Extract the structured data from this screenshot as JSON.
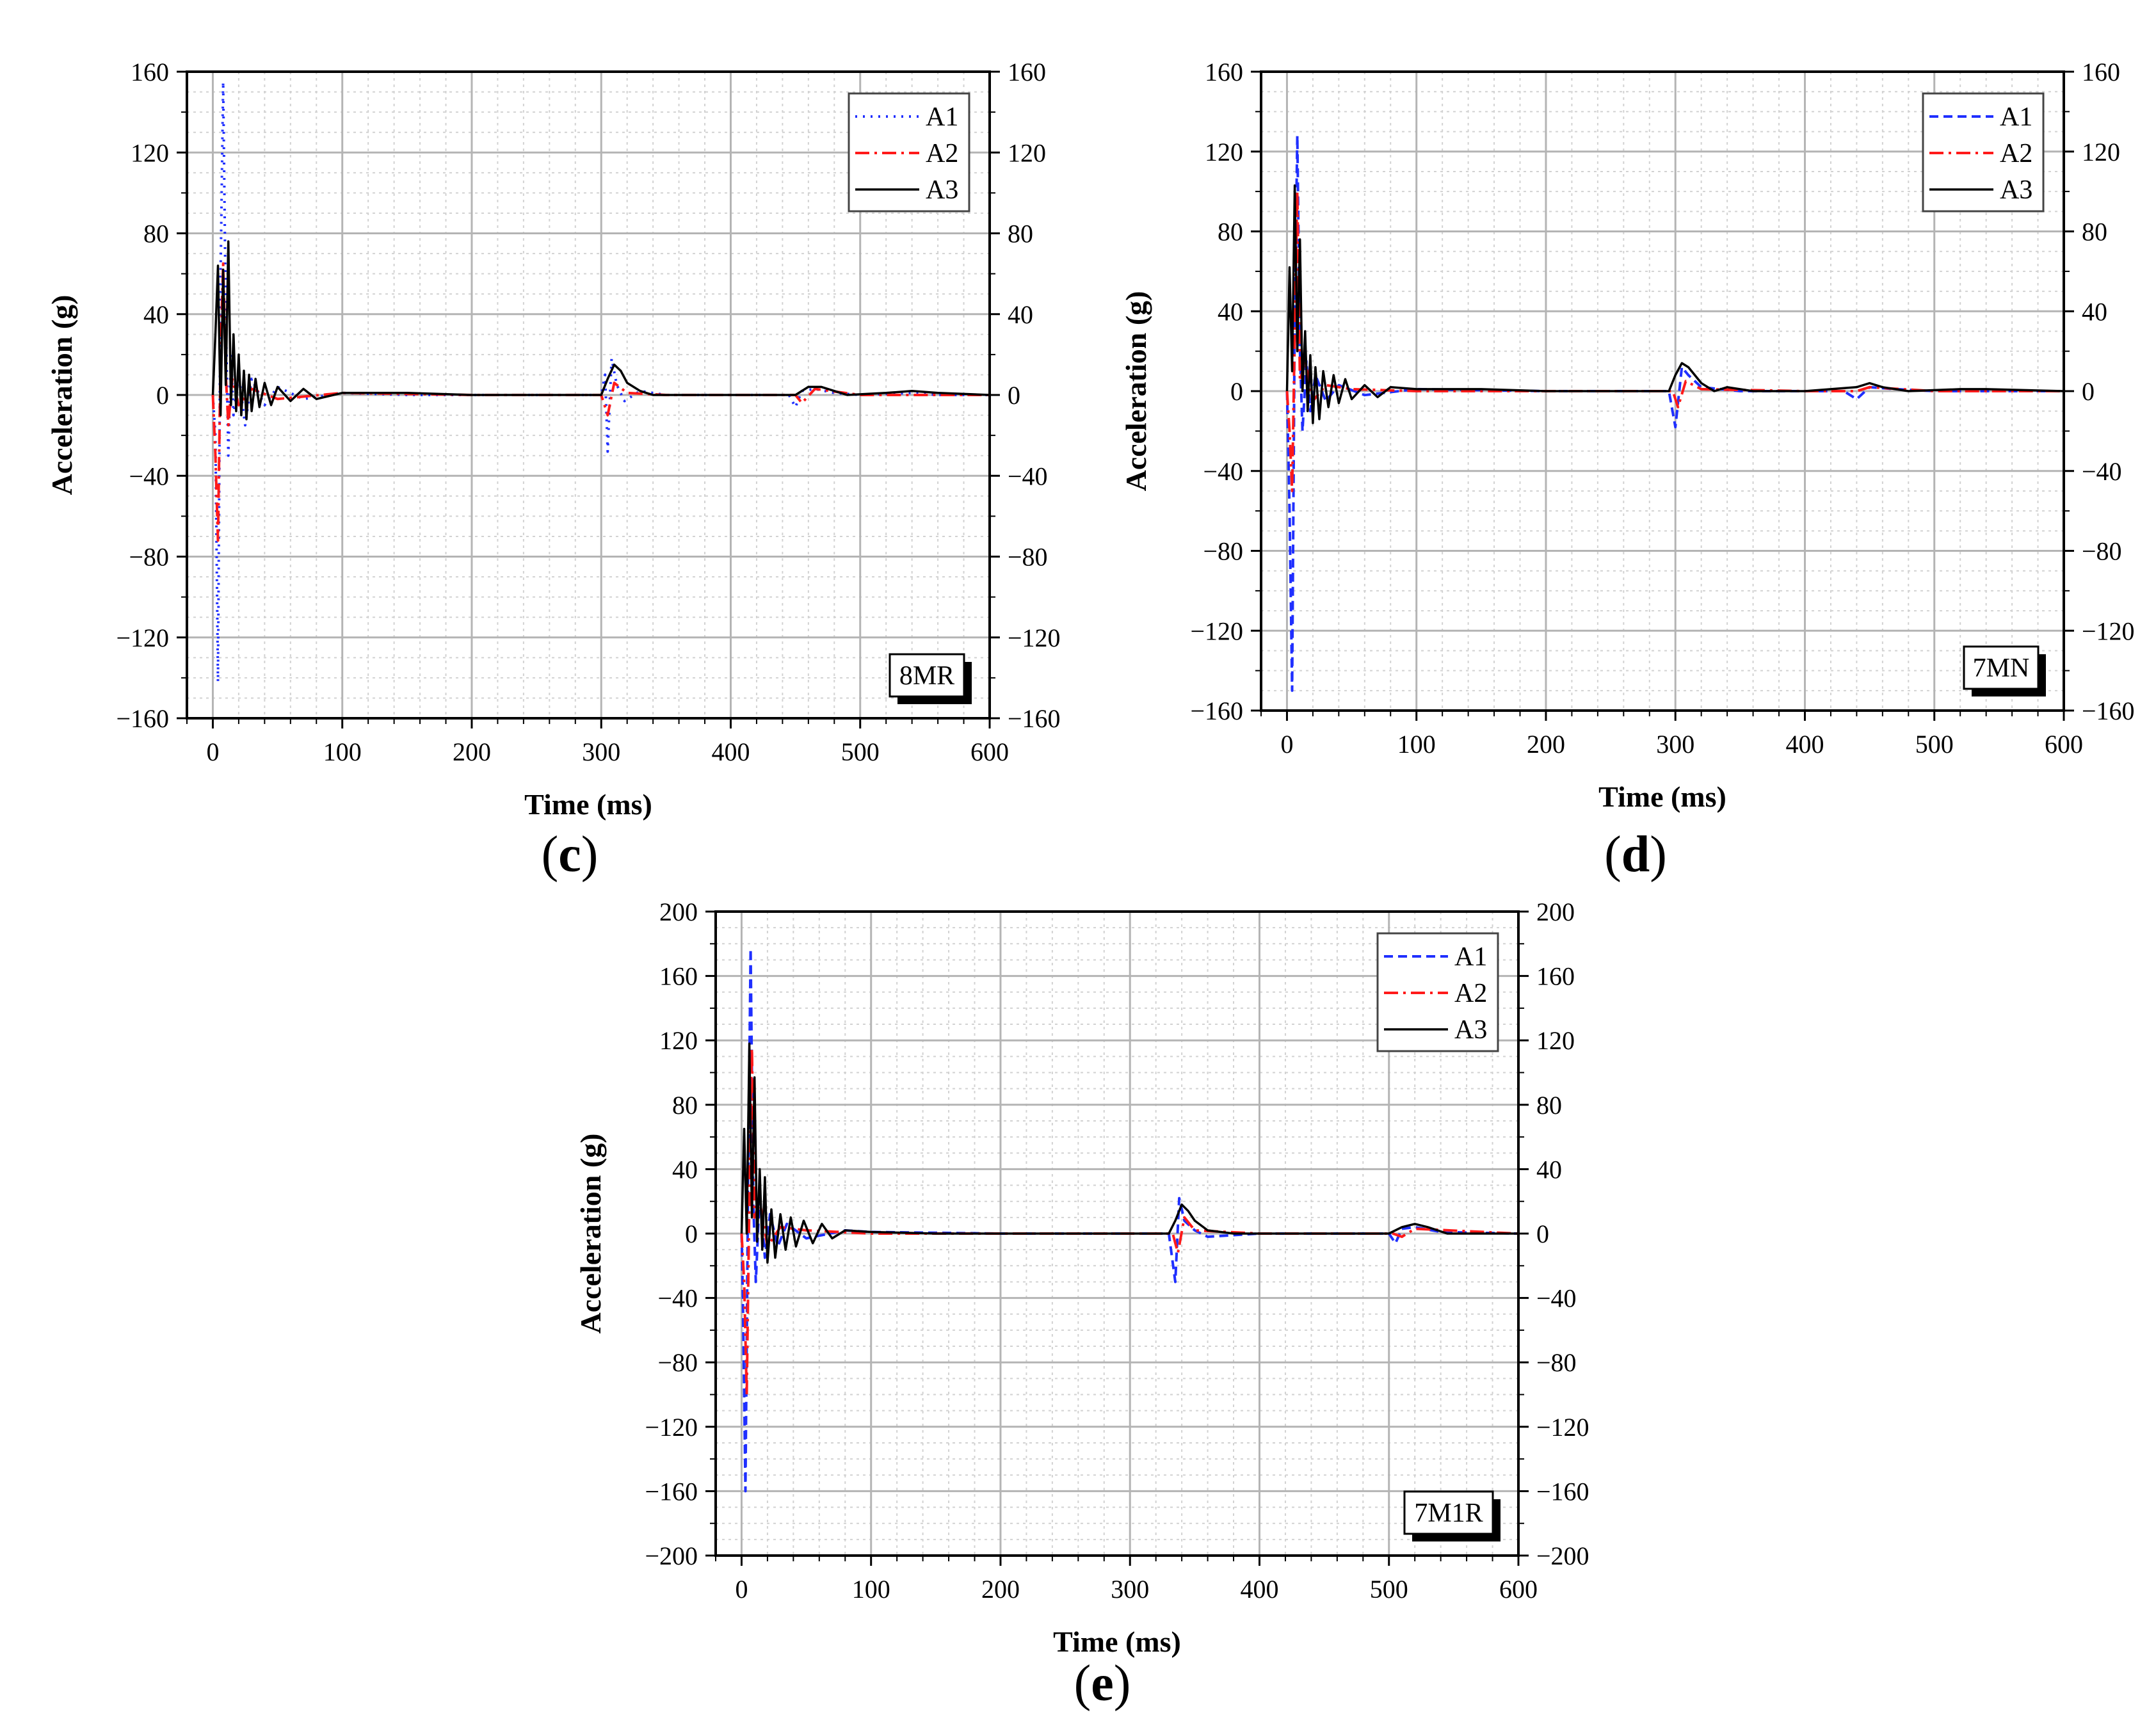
{
  "figure": {
    "panel_labels": [
      "c",
      "d",
      "e"
    ]
  },
  "colors": {
    "A1": "#1f2fff",
    "A2": "#ff1a1a",
    "A3": "#000000",
    "grid_major": "#b4b4b4",
    "grid_minor": "#d2d2d2"
  },
  "chart_data": [
    {
      "type": "line",
      "id": "c",
      "specimen_tag": "8MR",
      "xlabel": "Time (ms)",
      "ylabel": "Acceleration (g)",
      "xlim": [
        -20,
        600
      ],
      "ylim": [
        -160,
        160
      ],
      "xticks": [
        0,
        100,
        200,
        300,
        400,
        500,
        600
      ],
      "xtick_labels": [
        "0",
        "100",
        "200",
        "300",
        "400",
        "500",
        "600"
      ],
      "yticks": [
        -160,
        -120,
        -80,
        -40,
        0,
        40,
        80,
        120,
        160
      ],
      "ytick_labels": [
        "−160",
        "−120",
        "−80",
        "−40",
        "0",
        "40",
        "80",
        "120",
        "160"
      ],
      "legend": [
        "A1",
        "A2",
        "A3"
      ],
      "legend_position": "top-right",
      "grid": true,
      "series": [
        {
          "name": "A1",
          "style": "dotted",
          "x": [
            0,
            2,
            4,
            6,
            8,
            10,
            12,
            14,
            16,
            20,
            25,
            30,
            40,
            50,
            70,
            100,
            150,
            200,
            300,
            303,
            305,
            308,
            312,
            318,
            330,
            350,
            400,
            445,
            450,
            455,
            465,
            480,
            500,
            540,
            560,
            600
          ],
          "y": [
            0,
            -20,
            -142,
            60,
            155,
            40,
            -30,
            20,
            -10,
            10,
            -15,
            8,
            -5,
            4,
            -2,
            1,
            0,
            0,
            0,
            10,
            -28,
            18,
            5,
            -3,
            2,
            0,
            0,
            0,
            -6,
            2,
            3,
            1,
            0,
            1,
            0,
            0
          ]
        },
        {
          "name": "A2",
          "style": "dashdot",
          "x": [
            0,
            2,
            4,
            6,
            8,
            10,
            12,
            15,
            20,
            30,
            50,
            100,
            200,
            300,
            305,
            310,
            320,
            350,
            450,
            455,
            465,
            500,
            600
          ],
          "y": [
            0,
            -30,
            -72,
            20,
            65,
            10,
            -15,
            8,
            -5,
            3,
            -2,
            1,
            0,
            0,
            -10,
            6,
            1,
            0,
            0,
            -4,
            3,
            0,
            0
          ]
        },
        {
          "name": "A3",
          "style": "solid",
          "x": [
            0,
            2,
            4,
            6,
            8,
            10,
            12,
            14,
            16,
            18,
            20,
            22,
            24,
            26,
            28,
            30,
            33,
            36,
            40,
            45,
            50,
            60,
            70,
            80,
            100,
            150,
            200,
            300,
            305,
            310,
            315,
            320,
            330,
            340,
            360,
            400,
            450,
            460,
            470,
            490,
            520,
            540,
            560,
            600
          ],
          "y": [
            0,
            30,
            64,
            -10,
            62,
            5,
            76,
            -5,
            30,
            -8,
            20,
            -10,
            12,
            -12,
            10,
            -8,
            8,
            -6,
            6,
            -5,
            4,
            -3,
            3,
            -2,
            1,
            1,
            0,
            0,
            8,
            15,
            12,
            6,
            2,
            0,
            0,
            0,
            0,
            4,
            4,
            0,
            1,
            2,
            1,
            0
          ]
        }
      ]
    },
    {
      "type": "line",
      "id": "d",
      "specimen_tag": "7MN",
      "xlabel": "Time (ms)",
      "ylabel": "Acceleration (g)",
      "xlim": [
        -20,
        600
      ],
      "ylim": [
        -160,
        160
      ],
      "xticks": [
        0,
        100,
        200,
        300,
        400,
        500,
        600
      ],
      "xtick_labels": [
        "0",
        "100",
        "200",
        "300",
        "400",
        "500",
        "600"
      ],
      "yticks": [
        -160,
        -120,
        -80,
        -40,
        0,
        40,
        80,
        120,
        160
      ],
      "ytick_labels": [
        "−160",
        "−120",
        "−80",
        "−40",
        "0",
        "40",
        "80",
        "120",
        "160"
      ],
      "legend": [
        "A1",
        "A2",
        "A3"
      ],
      "legend_position": "top-right",
      "grid": true,
      "series": [
        {
          "name": "A1",
          "style": "dashed",
          "x": [
            0,
            2,
            4,
            6,
            8,
            10,
            12,
            15,
            18,
            22,
            30,
            40,
            60,
            100,
            200,
            295,
            300,
            305,
            310,
            320,
            350,
            430,
            440,
            450,
            470,
            500,
            600
          ],
          "y": [
            0,
            -60,
            -150,
            40,
            128,
            20,
            -20,
            15,
            -10,
            8,
            -5,
            3,
            -2,
            1,
            0,
            0,
            -18,
            12,
            8,
            2,
            0,
            0,
            -4,
            2,
            1,
            0,
            0
          ]
        },
        {
          "name": "A2",
          "style": "dashdot",
          "x": [
            0,
            2,
            4,
            6,
            8,
            10,
            14,
            20,
            30,
            50,
            100,
            200,
            298,
            302,
            308,
            320,
            400,
            440,
            450,
            500,
            600
          ],
          "y": [
            0,
            -20,
            -50,
            30,
            100,
            5,
            15,
            -5,
            3,
            1,
            0,
            0,
            0,
            -8,
            5,
            1,
            0,
            0,
            2,
            0,
            0
          ]
        },
        {
          "name": "A3",
          "style": "solid",
          "x": [
            0,
            2,
            4,
            6,
            8,
            10,
            12,
            14,
            16,
            18,
            20,
            22,
            25,
            28,
            32,
            36,
            40,
            45,
            50,
            60,
            70,
            80,
            100,
            150,
            200,
            295,
            300,
            305,
            310,
            315,
            320,
            330,
            340,
            360,
            400,
            440,
            450,
            460,
            480,
            520,
            540,
            600
          ],
          "y": [
            0,
            62,
            10,
            103,
            20,
            76,
            0,
            30,
            -10,
            18,
            -16,
            12,
            -14,
            10,
            -8,
            8,
            -6,
            6,
            -4,
            3,
            -3,
            2,
            1,
            1,
            0,
            0,
            8,
            14,
            12,
            8,
            4,
            0,
            2,
            0,
            0,
            2,
            4,
            2,
            0,
            1,
            1,
            0
          ]
        }
      ]
    },
    {
      "type": "line",
      "id": "e",
      "specimen_tag": "7M1R",
      "xlabel": "Time (ms)",
      "ylabel": "Acceleration (g)",
      "xlim": [
        -20,
        600
      ],
      "ylim": [
        -200,
        200
      ],
      "xticks": [
        0,
        100,
        200,
        300,
        400,
        500,
        600
      ],
      "xtick_labels": [
        "0",
        "100",
        "200",
        "300",
        "400",
        "500",
        "600"
      ],
      "yticks": [
        -200,
        -160,
        -120,
        -80,
        -40,
        0,
        40,
        80,
        120,
        160,
        200
      ],
      "ytick_labels": [
        "−200",
        "−160",
        "−120",
        "−80",
        "−40",
        "0",
        "40",
        "80",
        "120",
        "160",
        "200"
      ],
      "legend": [
        "A1",
        "A2",
        "A3"
      ],
      "legend_position": "top-right",
      "grid": true,
      "series": [
        {
          "name": "A1",
          "style": "dashed",
          "x": [
            0,
            1,
            3,
            5,
            7,
            9,
            11,
            14,
            18,
            22,
            28,
            35,
            50,
            80,
            100,
            200,
            330,
            335,
            338,
            342,
            350,
            360,
            400,
            500,
            505,
            510,
            520,
            540,
            600
          ],
          "y": [
            0,
            -40,
            -160,
            30,
            177,
            20,
            -30,
            25,
            -15,
            12,
            -8,
            6,
            -3,
            2,
            1,
            0,
            0,
            -30,
            22,
            8,
            2,
            -2,
            0,
            0,
            -6,
            3,
            4,
            1,
            0
          ]
        },
        {
          "name": "A2",
          "style": "dashdot",
          "x": [
            0,
            2,
            4,
            6,
            8,
            10,
            14,
            20,
            30,
            50,
            100,
            200,
            333,
            337,
            342,
            350,
            400,
            503,
            510,
            520,
            600
          ],
          "y": [
            0,
            -30,
            -100,
            20,
            115,
            10,
            20,
            -8,
            4,
            2,
            0,
            0,
            0,
            -12,
            10,
            2,
            0,
            0,
            -2,
            3,
            0
          ]
        },
        {
          "name": "A3",
          "style": "solid",
          "x": [
            0,
            2,
            4,
            6,
            8,
            10,
            12,
            14,
            16,
            18,
            20,
            23,
            26,
            30,
            34,
            38,
            42,
            48,
            55,
            62,
            70,
            80,
            100,
            150,
            200,
            330,
            335,
            340,
            345,
            350,
            360,
            380,
            400,
            500,
            510,
            520,
            530,
            545,
            600
          ],
          "y": [
            0,
            65,
            0,
            118,
            10,
            97,
            -5,
            40,
            -10,
            35,
            -18,
            15,
            -15,
            12,
            -10,
            10,
            -8,
            8,
            -6,
            6,
            -3,
            2,
            1,
            0,
            0,
            0,
            8,
            18,
            14,
            8,
            2,
            0,
            0,
            0,
            4,
            6,
            4,
            0,
            0
          ]
        }
      ]
    }
  ]
}
